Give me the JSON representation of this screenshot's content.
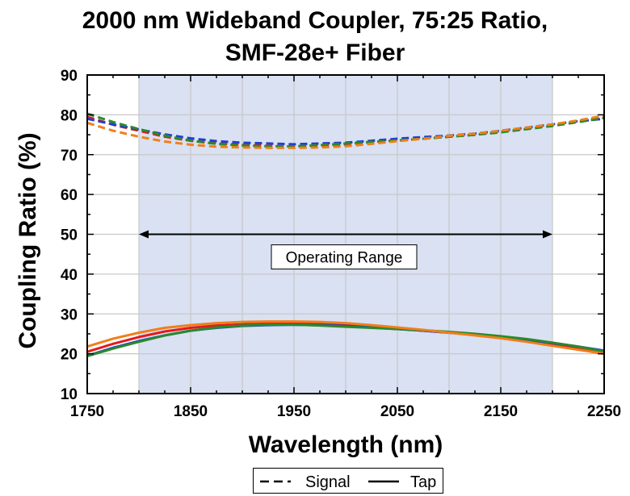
{
  "chart_data": {
    "type": "line",
    "title_line1": "2000 nm Wideband Coupler, 75:25 Ratio,",
    "title_line2": "SMF-28e+ Fiber",
    "xlabel": "Wavelength (nm)",
    "ylabel": "Coupling Ratio (%)",
    "xlim": [
      1750,
      2250
    ],
    "ylim": [
      10,
      90
    ],
    "x_ticks": [
      1750,
      1850,
      1950,
      2050,
      2150,
      2250
    ],
    "y_ticks": [
      10,
      20,
      30,
      40,
      50,
      60,
      70,
      80,
      90
    ],
    "grid": true,
    "operating_range": {
      "start": 1800,
      "end": 2200,
      "label": "Operating Range",
      "arrow_y": 50
    },
    "legend": [
      {
        "label": "Signal",
        "style": "dashed"
      },
      {
        "label": "Tap",
        "style": "solid"
      }
    ],
    "x": [
      1750,
      1775,
      1800,
      1825,
      1850,
      1875,
      1900,
      1925,
      1950,
      1975,
      2000,
      2025,
      2050,
      2075,
      2100,
      2125,
      2150,
      2175,
      2200,
      2225,
      2250
    ],
    "series": [
      {
        "name": "Signal",
        "color": "#e41a1c",
        "style": "dashed",
        "values": [
          79.5,
          77.5,
          76.0,
          74.5,
          73.5,
          72.8,
          72.5,
          72.2,
          72.0,
          72.2,
          72.5,
          73.0,
          73.5,
          74.0,
          74.5,
          75.0,
          75.8,
          76.5,
          77.5,
          78.5,
          79.5
        ]
      },
      {
        "name": "Signal",
        "color": "#1f3fd6",
        "style": "dashed",
        "values": [
          79.0,
          77.6,
          76.3,
          75.1,
          74.1,
          73.4,
          73.0,
          72.8,
          72.6,
          72.8,
          73.0,
          73.5,
          74.0,
          74.4,
          74.8,
          75.3,
          76.0,
          76.8,
          77.6,
          78.4,
          79.0
        ]
      },
      {
        "name": "Signal",
        "color": "#2a8a2a",
        "style": "dashed",
        "values": [
          80.3,
          78.2,
          76.4,
          74.8,
          73.5,
          72.7,
          72.3,
          72.1,
          72.1,
          72.4,
          72.8,
          73.2,
          73.6,
          74.0,
          74.5,
          75.0,
          75.6,
          76.4,
          77.2,
          78.2,
          79.2
        ]
      },
      {
        "name": "Signal",
        "color": "#f07f1a",
        "style": "dashed",
        "values": [
          78.0,
          76.0,
          74.5,
          73.3,
          72.5,
          72.0,
          71.8,
          71.7,
          71.7,
          71.8,
          72.1,
          72.7,
          73.4,
          74.0,
          74.7,
          75.3,
          76.0,
          76.8,
          77.6,
          78.6,
          79.8
        ]
      },
      {
        "name": "Tap",
        "color": "#e41a1c",
        "style": "solid",
        "values": [
          20.5,
          22.5,
          24.2,
          25.6,
          26.5,
          27.1,
          27.4,
          27.6,
          27.6,
          27.5,
          27.2,
          26.8,
          26.3,
          25.8,
          25.3,
          24.7,
          24.0,
          23.2,
          22.3,
          21.2,
          20.0
        ]
      },
      {
        "name": "Tap",
        "color": "#1f3fd6",
        "style": "solid",
        "values": [
          19.5,
          21.5,
          23.2,
          24.6,
          25.8,
          26.5,
          27.0,
          27.2,
          27.3,
          27.2,
          27.0,
          26.6,
          26.2,
          25.8,
          25.3,
          24.8,
          24.2,
          23.5,
          22.7,
          21.8,
          20.8
        ]
      },
      {
        "name": "Tap",
        "color": "#2a8a2a",
        "style": "solid",
        "values": [
          19.4,
          21.3,
          23.0,
          24.6,
          25.8,
          26.6,
          27.1,
          27.3,
          27.3,
          27.1,
          26.8,
          26.5,
          26.2,
          25.9,
          25.5,
          25.0,
          24.4,
          23.7,
          22.8,
          21.8,
          20.6
        ]
      },
      {
        "name": "Tap",
        "color": "#f07f1a",
        "style": "solid",
        "values": [
          21.8,
          23.8,
          25.3,
          26.5,
          27.2,
          27.7,
          28.0,
          28.1,
          28.1,
          28.0,
          27.7,
          27.2,
          26.6,
          26.0,
          25.3,
          24.6,
          23.9,
          23.0,
          22.0,
          21.0,
          20.0
        ]
      }
    ]
  }
}
